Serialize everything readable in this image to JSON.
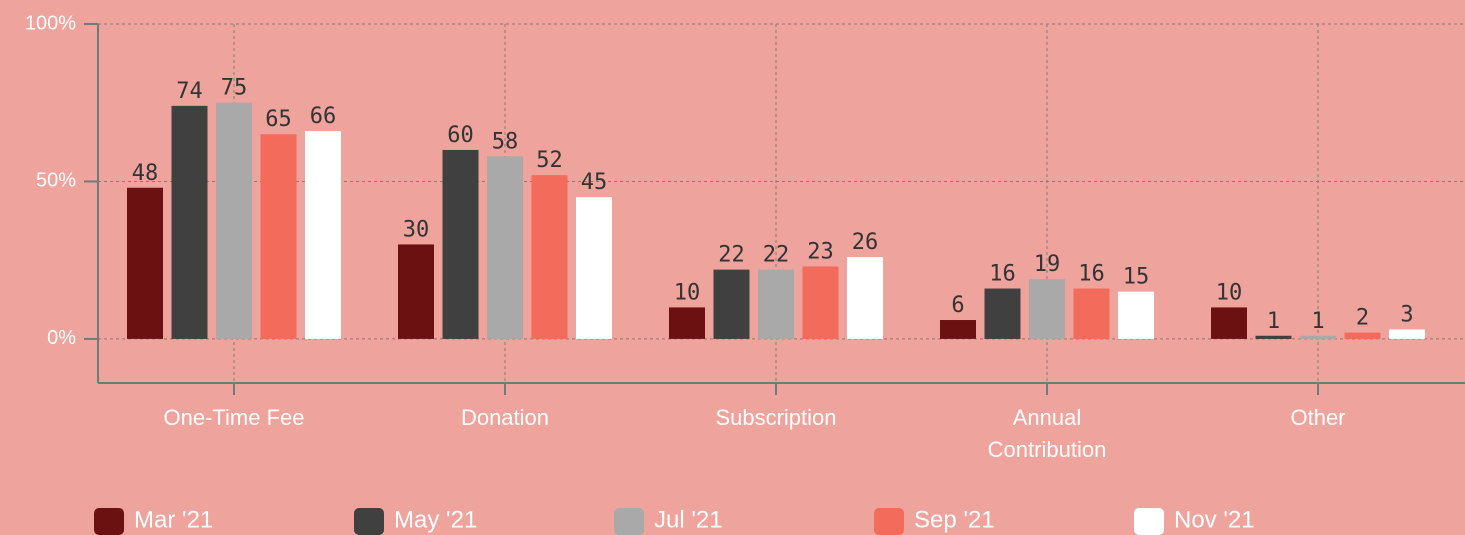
{
  "chart_data": {
    "type": "bar",
    "categories": [
      "One-Time Fee",
      "Donation",
      "Subscription",
      "Annual Contribution",
      "Other"
    ],
    "series": [
      {
        "name": "Mar '21",
        "color": "#6b1111",
        "values": [
          48,
          30,
          10,
          6,
          10
        ]
      },
      {
        "name": "May '21",
        "color": "#404040",
        "values": [
          74,
          60,
          22,
          16,
          1
        ]
      },
      {
        "name": "Jul '21",
        "color": "#a9a9a9",
        "values": [
          75,
          58,
          22,
          19,
          1
        ]
      },
      {
        "name": "Sep '21",
        "color": "#f26b5b",
        "values": [
          65,
          52,
          23,
          16,
          2
        ]
      },
      {
        "name": "Nov '21",
        "color": "#ffffff",
        "values": [
          66,
          45,
          26,
          15,
          3
        ]
      }
    ],
    "ylim": [
      -14,
      100
    ],
    "yticks": [
      {
        "value": 0,
        "label": "0%"
      },
      {
        "value": 50,
        "label": "50%"
      },
      {
        "value": 100,
        "label": "100%"
      }
    ],
    "grid": true,
    "legend": "bottom"
  }
}
